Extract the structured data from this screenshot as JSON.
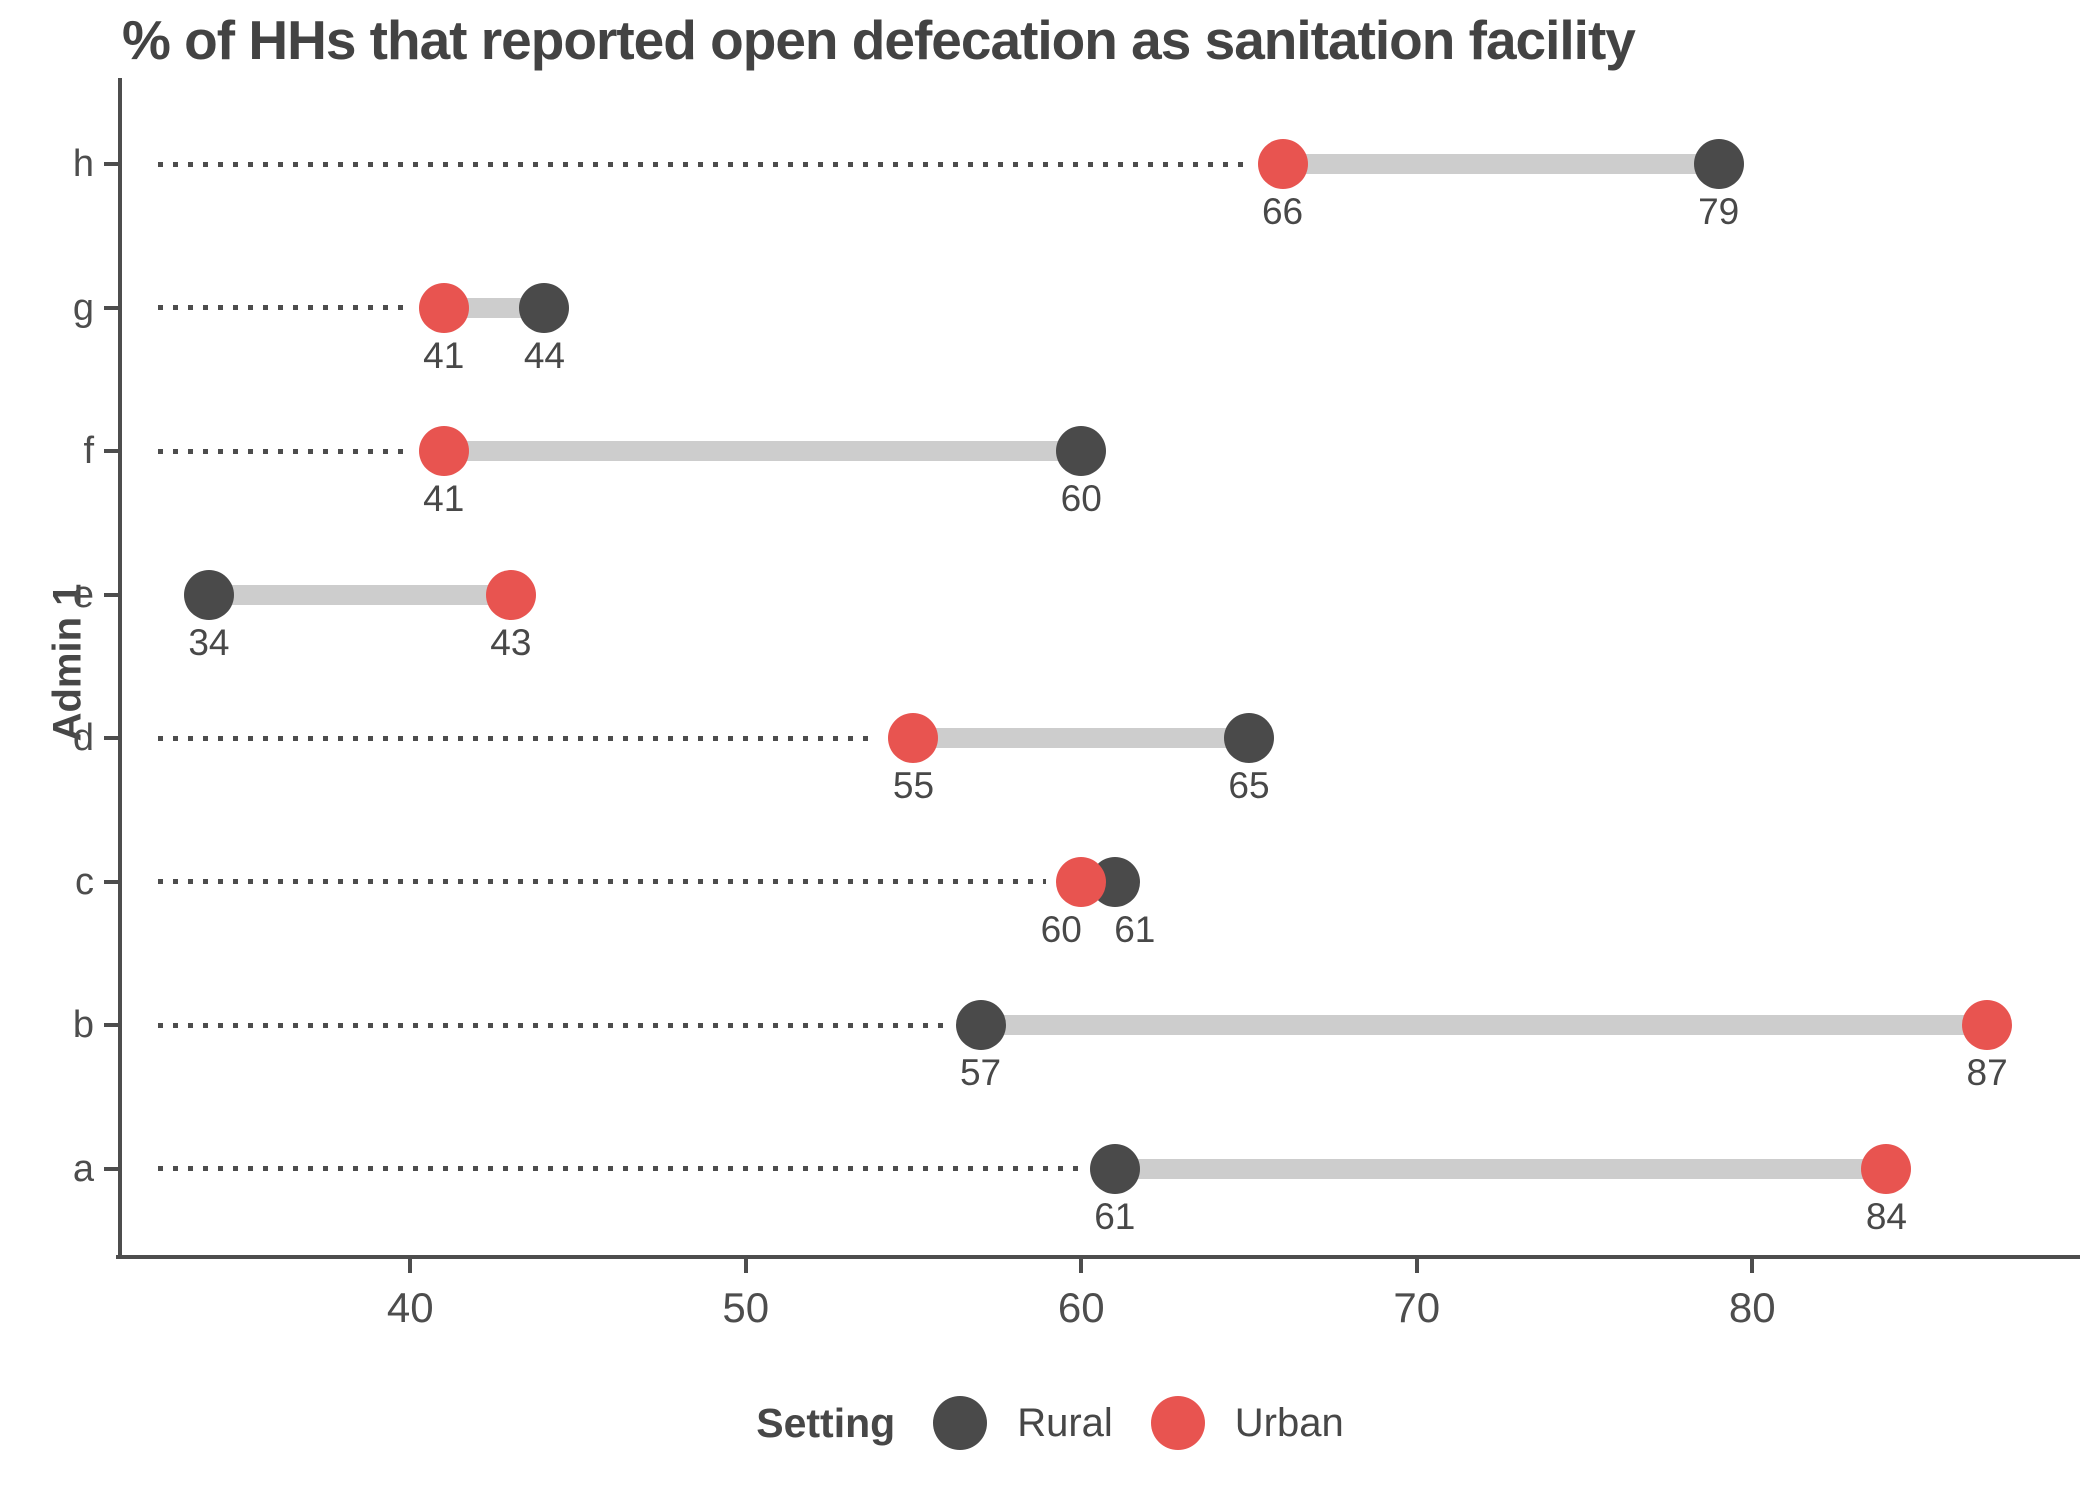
{
  "title": "% of HHs that reported open defecation as sanitation facility",
  "y_axis_label": "Admin 1",
  "legend": {
    "title": "Setting",
    "items": [
      {
        "label": "Rural",
        "color": "#4A4A4A"
      },
      {
        "label": "Urban",
        "color": "#E85450"
      }
    ]
  },
  "colors": {
    "rural": "#4A4A4A",
    "urban": "#E85450",
    "connector": "#CDCDCD",
    "leader": "#4D4D4D",
    "axis": "#4D4D4D",
    "text": "#484848"
  },
  "chart_data": {
    "type": "dumbbell",
    "title": "% of HHs that reported open defecation as sanitation facility",
    "xlabel": "",
    "ylabel": "Admin 1",
    "categories": [
      "h",
      "g",
      "f",
      "e",
      "d",
      "c",
      "b",
      "a"
    ],
    "series": [
      {
        "name": "Rural",
        "values": [
          79,
          44,
          60,
          34,
          65,
          61,
          57,
          61
        ]
      },
      {
        "name": "Urban",
        "values": [
          66,
          41,
          41,
          43,
          55,
          60,
          87,
          84
        ]
      }
    ],
    "leader_line": [
      true,
      true,
      true,
      false,
      true,
      true,
      true,
      true
    ],
    "x_ticks": [
      40,
      50,
      60,
      70,
      80
    ],
    "xlim": [
      31.35,
      89.65
    ],
    "grid": false,
    "legend_position": "bottom"
  }
}
